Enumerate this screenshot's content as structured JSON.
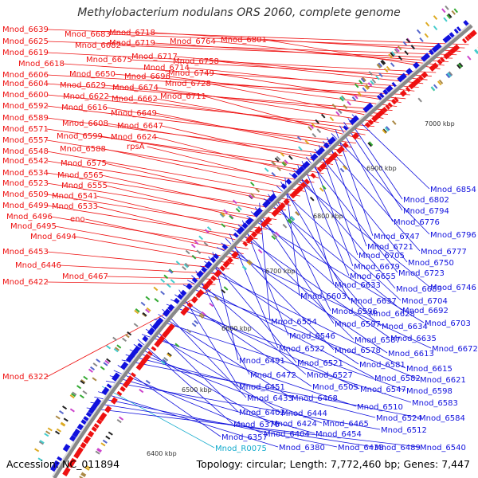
{
  "title": "Methylobacterium nodulans ORS 2060, complete genome",
  "footer": {
    "accession": "Accession: NC_011894",
    "topology": "Topology: circular; Length: 7,772,460 bp; Genes: 7,447"
  },
  "scale_marks": [
    "7000 kbp",
    "6900 kbp",
    "6800 kbp",
    "6700 kbp",
    "6600 kbp",
    "6500 kbp",
    "6400 kbp"
  ],
  "left_labels": [
    "Mnod_6639",
    "Mnod_6683",
    "Mnod_6718",
    "Mnod_6625",
    "Mnod_6682",
    "Mnod_6719",
    "Mnod_6764",
    "Mnod_6801",
    "Mnod_6619",
    "Mnod_6675",
    "Mnod_6717",
    "Mnod_6758",
    "Mnod_6618",
    "Mnod_6714",
    "Mnod_6606",
    "Mnod_6650",
    "Mnod_6749",
    "Mnod_6696",
    "Mnod_6604",
    "Mnod_6629",
    "Mnod_6728",
    "Mnod_6674",
    "Mnod_6600",
    "Mnod_6622",
    "Mnod_6662",
    "Mnod_6711",
    "Mnod_6592",
    "Mnod_6616",
    "Mnod_6649",
    "Mnod_6589",
    "Mnod_6608",
    "Mnod_6647",
    "Mnod_6571",
    "Mnod_6599",
    "Mnod_6624",
    "Mnod_6557",
    "rpsA",
    "Mnod_6588",
    "Mnod_6548",
    "Mnod_6542",
    "Mnod_6575",
    "Mnod_6534",
    "Mnod_6565",
    "Mnod_6523",
    "Mnod_6555",
    "Mnod_6509",
    "Mnod_6541",
    "Mnod_6499",
    "Mnod_6533",
    "Mnod_6496",
    "eno",
    "Mnod_6495",
    "Mnod_6494",
    "Mnod_6453",
    "Mnod_6446",
    "Mnod_6467",
    "Mnod_6422",
    "Mnod_6322"
  ],
  "right_labels": [
    "Mnod_6854",
    "Mnod_6802",
    "Mnod_6794",
    "Mnod_6776",
    "Mnod_6747",
    "Mnod_6796",
    "Mnod_6721",
    "Mnod_6777",
    "Mnod_6705",
    "Mnod_6750",
    "Mnod_6679",
    "Mnod_6723",
    "Mnod_6655",
    "Mnod_6633",
    "Mnod_6689",
    "Mnod_6746",
    "Mnod_6603",
    "Mnod_6637",
    "Mnod_6704",
    "Mnod_6596",
    "Mnod_6628",
    "Mnod_6692",
    "Mnod_6554",
    "Mnod_6597",
    "Mnod_6634",
    "Mnod_6703",
    "Mnod_6546",
    "Mnod_6587",
    "Mnod_6635",
    "Mnod_6522",
    "Mnod_6578",
    "Mnod_6613",
    "Mnod_6672",
    "Mnod_6491",
    "Mnod_6521",
    "Mnod_6581",
    "Mnod_6615",
    "Mnod_6472",
    "Mnod_6527",
    "Mnod_6582",
    "Mnod_6621",
    "Mnod_6451",
    "Mnod_6505",
    "Mnod_6547",
    "Mnod_6598",
    "Mnod_6433",
    "Mnod_6468",
    "Mnod_6583",
    "Mnod_6402",
    "Mnod_6444",
    "Mnod_6510",
    "Mnod_6376",
    "Mnod_6424",
    "Mnod_6465",
    "Mnod_6524",
    "Mnod_6584",
    "Mnod_6357",
    "Mnod_6404",
    "Mnod_6454",
    "Mnod_6512",
    "Mnod_R0075",
    "Mnod_6380",
    "Mnod_6438",
    "Mnod_6489",
    "Mnod_6540"
  ],
  "colors": {
    "forward_strand": "#ee1111",
    "reverse_strand": "#1111dd",
    "backbone": "#999999",
    "rna_label": "#11aacc",
    "text": "#000000"
  }
}
